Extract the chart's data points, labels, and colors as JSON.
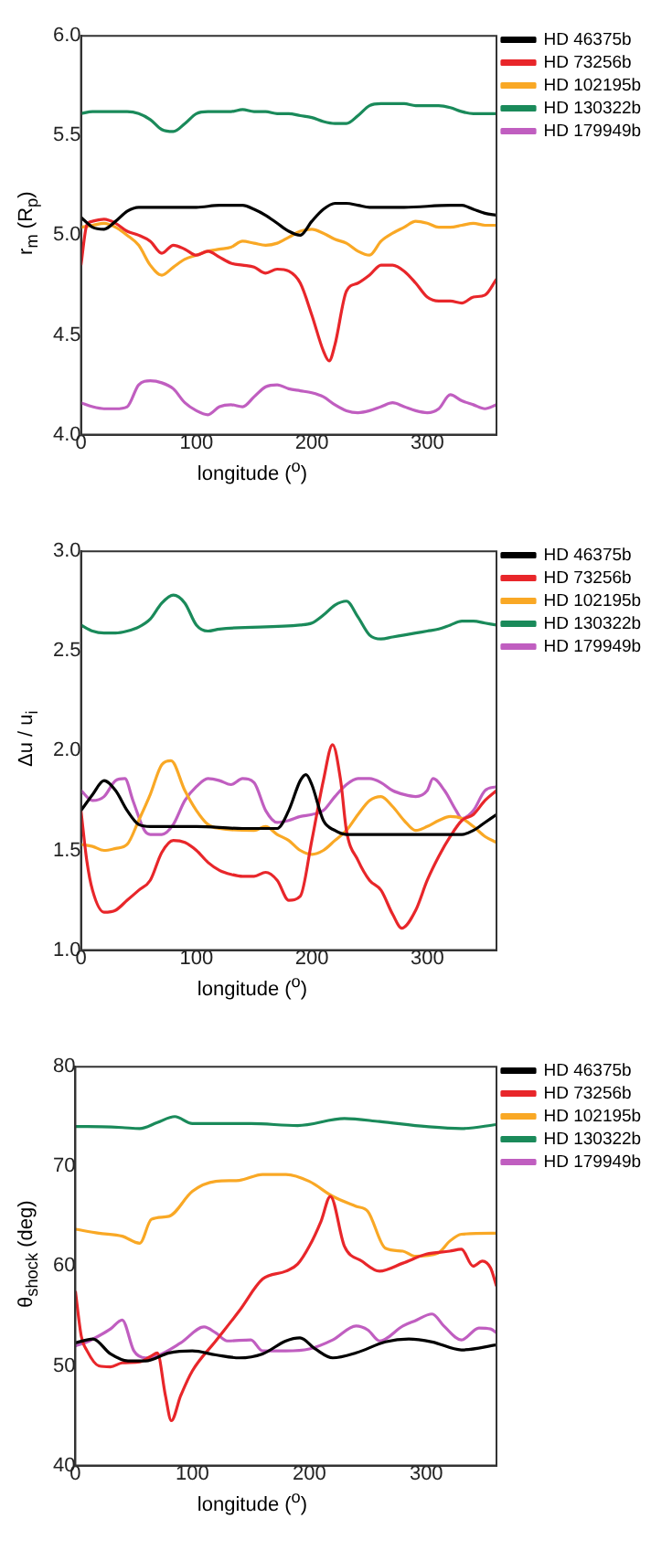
{
  "chart_data": [
    {
      "type": "line",
      "xlabel": "longitude ($^{o}$)",
      "ylabel": "r$_{m}$ (R$_{p}$)",
      "xlim": [
        0,
        360
      ],
      "xticks": [
        0,
        100,
        200,
        300
      ],
      "ylim": [
        4,
        6
      ],
      "yticks": [
        {
          "value": 4,
          "label": "4.0"
        },
        4.5,
        {
          "value": 5,
          "label": "5.0"
        },
        5.5,
        {
          "value": 6,
          "label": "6.0"
        }
      ],
      "legend": "top right",
      "marker": "none",
      "line_style": "solid",
      "grid": false,
      "series": [
        {
          "name": "HD 46375b",
          "color": "#000000",
          "x": [
            0,
            10,
            20,
            30,
            40,
            50,
            60,
            80,
            100,
            120,
            130,
            140,
            150,
            160,
            170,
            180,
            190,
            200,
            210,
            220,
            230,
            240,
            250,
            280,
            320,
            330,
            340,
            350,
            360
          ],
          "values": [
            5.09,
            5.04,
            5.03,
            5.07,
            5.12,
            5.14,
            5.14,
            5.14,
            5.14,
            5.15,
            5.15,
            5.15,
            5.13,
            5.1,
            5.06,
            5.02,
            5.0,
            5.07,
            5.13,
            5.16,
            5.16,
            5.15,
            5.14,
            5.14,
            5.15,
            5.15,
            5.13,
            5.11,
            5.1
          ]
        },
        {
          "name": "HD 73256b",
          "color": "#e8262a",
          "x": [
            0,
            5,
            10,
            20,
            30,
            40,
            50,
            60,
            70,
            80,
            90,
            100,
            110,
            120,
            130,
            140,
            150,
            160,
            170,
            180,
            190,
            200,
            210,
            215,
            220,
            230,
            240,
            250,
            260,
            270,
            280,
            290,
            300,
            310,
            320,
            330,
            340,
            350,
            360
          ],
          "values": [
            4.85,
            5.05,
            5.07,
            5.08,
            5.06,
            5.02,
            5.0,
            4.97,
            4.91,
            4.95,
            4.93,
            4.9,
            4.92,
            4.89,
            4.86,
            4.85,
            4.84,
            4.81,
            4.83,
            4.82,
            4.76,
            4.6,
            4.42,
            4.37,
            4.45,
            4.72,
            4.76,
            4.8,
            4.85,
            4.85,
            4.82,
            4.76,
            4.69,
            4.67,
            4.67,
            4.66,
            4.69,
            4.7,
            4.78
          ]
        },
        {
          "name": "HD 102195b",
          "color": "#f9a825",
          "x": [
            0,
            10,
            20,
            30,
            40,
            50,
            60,
            70,
            80,
            90,
            100,
            110,
            120,
            130,
            140,
            150,
            160,
            170,
            180,
            190,
            200,
            210,
            220,
            230,
            240,
            250,
            260,
            270,
            280,
            290,
            300,
            310,
            320,
            330,
            340,
            350,
            360
          ],
          "values": [
            5.04,
            5.05,
            5.06,
            5.04,
            5.0,
            4.95,
            4.85,
            4.8,
            4.84,
            4.88,
            4.9,
            4.92,
            4.93,
            4.94,
            4.97,
            4.96,
            4.95,
            4.96,
            4.99,
            5.02,
            5.03,
            5.01,
            4.98,
            4.96,
            4.92,
            4.9,
            4.97,
            5.01,
            5.04,
            5.07,
            5.06,
            5.04,
            5.04,
            5.05,
            5.06,
            5.05,
            5.05
          ]
        },
        {
          "name": "HD 130322b",
          "color": "#1a8a5a",
          "x": [
            0,
            10,
            20,
            30,
            40,
            50,
            60,
            70,
            80,
            90,
            100,
            110,
            120,
            130,
            140,
            150,
            160,
            170,
            180,
            190,
            200,
            210,
            220,
            230,
            240,
            250,
            260,
            270,
            280,
            290,
            300,
            310,
            320,
            330,
            340,
            350,
            360
          ],
          "values": [
            5.61,
            5.62,
            5.62,
            5.62,
            5.62,
            5.61,
            5.58,
            5.53,
            5.52,
            5.56,
            5.61,
            5.62,
            5.62,
            5.62,
            5.63,
            5.62,
            5.62,
            5.61,
            5.61,
            5.6,
            5.59,
            5.57,
            5.56,
            5.56,
            5.6,
            5.65,
            5.66,
            5.66,
            5.66,
            5.65,
            5.65,
            5.65,
            5.64,
            5.62,
            5.61,
            5.61,
            5.61
          ]
        },
        {
          "name": "HD 179949b",
          "color": "#c05ec0",
          "x": [
            0,
            10,
            20,
            30,
            40,
            50,
            60,
            70,
            80,
            90,
            100,
            110,
            120,
            130,
            140,
            150,
            160,
            170,
            180,
            190,
            200,
            210,
            220,
            230,
            240,
            250,
            260,
            270,
            280,
            290,
            300,
            310,
            320,
            330,
            340,
            350,
            360
          ],
          "values": [
            4.16,
            4.14,
            4.13,
            4.13,
            4.14,
            4.25,
            4.27,
            4.26,
            4.23,
            4.16,
            4.12,
            4.1,
            4.14,
            4.15,
            4.14,
            4.19,
            4.24,
            4.25,
            4.23,
            4.22,
            4.21,
            4.19,
            4.15,
            4.12,
            4.11,
            4.12,
            4.14,
            4.16,
            4.14,
            4.12,
            4.11,
            4.13,
            4.2,
            4.17,
            4.15,
            4.13,
            4.15
          ]
        }
      ]
    },
    {
      "type": "line",
      "xlabel": "longitude ($^{o}$)",
      "ylabel": "Δu / u$_{i}$",
      "xlim": [
        0,
        360
      ],
      "xticks": [
        0,
        100,
        200,
        300
      ],
      "ylim": [
        1,
        3
      ],
      "yticks": [
        {
          "value": 1,
          "label": "1.0"
        },
        1.5,
        {
          "value": 2,
          "label": "2.0"
        },
        2.5,
        {
          "value": 3,
          "label": "3.0"
        }
      ],
      "legend": "top right",
      "marker": "none",
      "line_style": "solid",
      "grid": false,
      "series": [
        {
          "name": "HD 46375b",
          "color": "#000000",
          "x": [
            0,
            10,
            20,
            30,
            40,
            50,
            60,
            100,
            140,
            170,
            180,
            190,
            195,
            200,
            210,
            220,
            230,
            280,
            330,
            340,
            350,
            360
          ],
          "values": [
            1.7,
            1.78,
            1.85,
            1.8,
            1.7,
            1.63,
            1.62,
            1.62,
            1.61,
            1.61,
            1.7,
            1.85,
            1.88,
            1.83,
            1.65,
            1.6,
            1.58,
            1.58,
            1.58,
            1.6,
            1.64,
            1.68
          ]
        },
        {
          "name": "HD 73256b",
          "color": "#e8262a",
          "x": [
            0,
            5,
            10,
            20,
            30,
            40,
            50,
            60,
            70,
            80,
            90,
            100,
            110,
            120,
            130,
            140,
            150,
            160,
            170,
            180,
            190,
            200,
            210,
            218,
            225,
            230,
            240,
            250,
            260,
            270,
            278,
            290,
            300,
            310,
            320,
            330,
            340,
            350,
            360
          ],
          "values": [
            1.7,
            1.45,
            1.3,
            1.19,
            1.2,
            1.25,
            1.3,
            1.35,
            1.49,
            1.55,
            1.54,
            1.5,
            1.44,
            1.4,
            1.38,
            1.37,
            1.37,
            1.39,
            1.35,
            1.25,
            1.27,
            1.55,
            1.85,
            2.03,
            1.85,
            1.6,
            1.45,
            1.35,
            1.3,
            1.18,
            1.11,
            1.2,
            1.35,
            1.47,
            1.57,
            1.65,
            1.68,
            1.75,
            1.8
          ]
        },
        {
          "name": "HD 102195b",
          "color": "#f9a825",
          "x": [
            0,
            10,
            20,
            30,
            40,
            50,
            60,
            70,
            78,
            90,
            100,
            110,
            120,
            150,
            160,
            170,
            180,
            190,
            200,
            210,
            220,
            230,
            240,
            250,
            260,
            270,
            280,
            290,
            300,
            310,
            320,
            330,
            340,
            350,
            360
          ],
          "values": [
            1.53,
            1.52,
            1.5,
            1.51,
            1.53,
            1.65,
            1.78,
            1.93,
            1.95,
            1.8,
            1.7,
            1.63,
            1.61,
            1.6,
            1.62,
            1.58,
            1.55,
            1.5,
            1.48,
            1.5,
            1.55,
            1.6,
            1.68,
            1.75,
            1.77,
            1.72,
            1.65,
            1.6,
            1.62,
            1.65,
            1.67,
            1.66,
            1.62,
            1.57,
            1.54
          ]
        },
        {
          "name": "HD 130322b",
          "color": "#1a8a5a",
          "x": [
            0,
            10,
            20,
            30,
            40,
            50,
            60,
            70,
            80,
            90,
            100,
            110,
            120,
            190,
            200,
            210,
            220,
            230,
            240,
            250,
            260,
            270,
            280,
            290,
            300,
            310,
            320,
            330,
            340,
            350,
            360
          ],
          "values": [
            2.63,
            2.6,
            2.59,
            2.59,
            2.6,
            2.62,
            2.66,
            2.74,
            2.78,
            2.74,
            2.63,
            2.6,
            2.61,
            2.63,
            2.64,
            2.68,
            2.73,
            2.75,
            2.67,
            2.58,
            2.56,
            2.57,
            2.58,
            2.59,
            2.6,
            2.61,
            2.63,
            2.65,
            2.65,
            2.64,
            2.63
          ]
        },
        {
          "name": "HD 179949b",
          "color": "#c05ec0",
          "x": [
            0,
            10,
            20,
            30,
            38,
            45,
            55,
            60,
            70,
            80,
            90,
            100,
            110,
            120,
            130,
            140,
            150,
            160,
            170,
            180,
            190,
            200,
            210,
            220,
            230,
            240,
            250,
            260,
            270,
            280,
            290,
            300,
            305,
            315,
            325,
            330,
            340,
            350,
            360
          ],
          "values": [
            1.8,
            1.75,
            1.77,
            1.85,
            1.86,
            1.75,
            1.6,
            1.58,
            1.58,
            1.63,
            1.75,
            1.82,
            1.86,
            1.85,
            1.83,
            1.86,
            1.84,
            1.7,
            1.64,
            1.65,
            1.67,
            1.68,
            1.7,
            1.77,
            1.83,
            1.86,
            1.86,
            1.84,
            1.8,
            1.78,
            1.77,
            1.8,
            1.86,
            1.8,
            1.7,
            1.66,
            1.7,
            1.8,
            1.82
          ]
        }
      ]
    },
    {
      "type": "line",
      "xlabel": "longitude ($^{o}$)",
      "ylabel": "θ$_{shock}$ (deg)",
      "xlim": [
        0,
        360
      ],
      "xticks": [
        0,
        100,
        200,
        300
      ],
      "ylim": [
        40,
        80
      ],
      "yticks": [
        40,
        50,
        60,
        70,
        80
      ],
      "legend": "top right",
      "marker": "none",
      "line_style": "solid",
      "grid": false,
      "series": [
        {
          "name": "HD 46375b",
          "color": "#000000",
          "x": [
            0,
            15,
            30,
            45,
            60,
            80,
            100,
            120,
            140,
            160,
            180,
            192,
            205,
            220,
            240,
            265,
            285,
            305,
            330,
            360
          ],
          "values": [
            52.3,
            52.7,
            51.2,
            50.5,
            50.5,
            51.3,
            51.5,
            51.1,
            50.8,
            51.2,
            52.5,
            52.8,
            51.7,
            50.8,
            51.3,
            52.4,
            52.7,
            52.4,
            51.6,
            52.1
          ]
        },
        {
          "name": "HD 73256b",
          "color": "#e8262a",
          "x": [
            0,
            5,
            10,
            20,
            30,
            40,
            55,
            65,
            70,
            77,
            82,
            90,
            100,
            120,
            140,
            160,
            180,
            190,
            200,
            210,
            218,
            230,
            245,
            260,
            280,
            300,
            320,
            330,
            340,
            348,
            355,
            360
          ],
          "values": [
            57.5,
            53,
            51.5,
            50,
            49.9,
            50.3,
            50.4,
            51,
            51.3,
            47,
            44.5,
            47,
            49.5,
            52.5,
            55.5,
            58.7,
            59.5,
            60.2,
            62,
            64.5,
            67,
            62,
            60.5,
            59.5,
            60.3,
            61.2,
            61.5,
            61.7,
            60,
            60.5,
            59.8,
            58
          ]
        },
        {
          "name": "HD 102195b",
          "color": "#f9a825",
          "x": [
            0,
            20,
            40,
            55,
            65,
            80,
            100,
            120,
            140,
            160,
            180,
            200,
            220,
            240,
            250,
            265,
            280,
            290,
            310,
            320,
            330,
            360
          ],
          "values": [
            63.7,
            63.3,
            63,
            62.3,
            64.7,
            65,
            67.5,
            68.5,
            68.6,
            69.2,
            69.2,
            68.5,
            67,
            66,
            65.5,
            61.8,
            61.5,
            61,
            61.3,
            62.5,
            63.2,
            63.3
          ]
        },
        {
          "name": "HD 130322b",
          "color": "#1a8a5a",
          "x": [
            0,
            10,
            40,
            55,
            70,
            85,
            100,
            150,
            190,
            230,
            260,
            300,
            330,
            360
          ],
          "values": [
            74,
            74,
            73.9,
            73.8,
            74.4,
            75,
            74.3,
            74.3,
            74.1,
            74.8,
            74.5,
            74,
            73.8,
            74.2
          ]
        },
        {
          "name": "HD 179949b",
          "color": "#c05ec0",
          "x": [
            0,
            10,
            20,
            30,
            40,
            50,
            60,
            70,
            90,
            110,
            120,
            130,
            150,
            160,
            180,
            200,
            220,
            240,
            250,
            260,
            280,
            290,
            305,
            315,
            330,
            345,
            355,
            360
          ],
          "values": [
            52,
            52.4,
            53,
            53.7,
            54.6,
            51.5,
            50.8,
            51,
            52.3,
            53.9,
            53.3,
            52.5,
            52.6,
            51.5,
            51.5,
            51.7,
            52.6,
            54,
            53.6,
            52.5,
            54,
            54.5,
            55.2,
            54,
            52.6,
            53.8,
            53.7,
            53.3
          ]
        }
      ]
    }
  ]
}
